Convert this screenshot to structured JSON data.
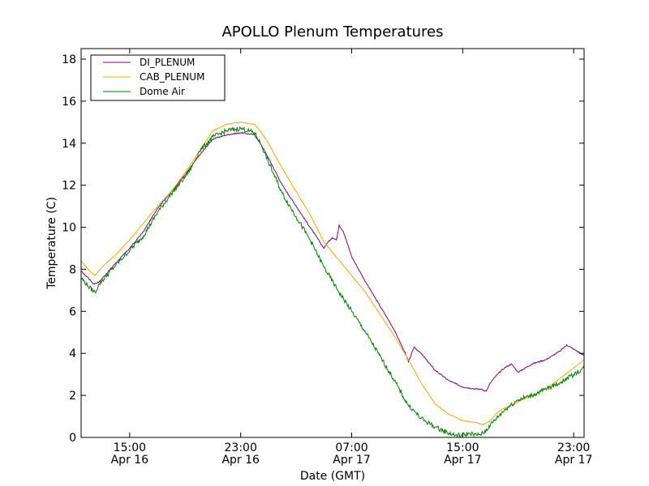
{
  "chart_data": {
    "type": "line",
    "title": "APOLLO Plenum Temperatures",
    "xlabel": "Date (GMT)",
    "ylabel": "Temperature (C)",
    "xlim": [
      11.5,
      47.75
    ],
    "ylim": [
      0,
      18.5
    ],
    "y_ticks": [
      0,
      2,
      4,
      6,
      8,
      10,
      12,
      14,
      16,
      18
    ],
    "x_ticks": [
      {
        "value": 15,
        "time": "15:00",
        "date": "Apr 16"
      },
      {
        "value": 23,
        "time": "23:00",
        "date": "Apr 16"
      },
      {
        "value": 31,
        "time": "07:00",
        "date": "Apr 17"
      },
      {
        "value": 39,
        "time": "15:00",
        "date": "Apr 17"
      },
      {
        "value": 47,
        "time": "23:00",
        "date": "Apr 17"
      }
    ],
    "x_unit_note": "x values are hours since Apr 16 00:00 GMT",
    "legend_position": "top-left",
    "series": [
      {
        "name": "DI_PLENUM",
        "color": "#800080",
        "x": [
          11.5,
          12.0,
          12.4,
          12.8,
          13.2,
          14.0,
          15.0,
          16.0,
          17.0,
          18.0,
          19.0,
          20.0,
          21.0,
          22.0,
          23.0,
          24.0,
          24.5,
          25.0,
          26.0,
          27.0,
          28.0,
          29.0,
          29.3,
          29.6,
          29.9,
          30.1,
          30.4,
          31.0,
          32.0,
          33.0,
          34.0,
          34.8,
          35.1,
          35.5,
          36.0,
          36.5,
          37.0,
          38.0,
          39.0,
          40.0,
          40.3,
          40.7,
          41.0,
          41.5,
          42.0,
          42.5,
          43.0,
          44.0,
          45.0,
          45.5,
          46.0,
          46.5,
          47.0,
          47.75
        ],
        "y": [
          7.9,
          7.6,
          7.3,
          7.4,
          7.7,
          8.3,
          9.0,
          9.8,
          10.9,
          11.7,
          12.5,
          13.4,
          14.2,
          14.4,
          14.5,
          14.4,
          13.9,
          13.3,
          12.0,
          11.0,
          10.0,
          9.0,
          9.3,
          9.5,
          9.4,
          10.1,
          9.8,
          8.6,
          7.4,
          6.3,
          5.2,
          4.1,
          3.6,
          4.3,
          4.0,
          3.6,
          3.2,
          2.7,
          2.4,
          2.3,
          2.3,
          2.2,
          2.6,
          3.0,
          3.3,
          3.5,
          3.1,
          3.5,
          3.7,
          3.9,
          4.1,
          4.4,
          4.2,
          3.9
        ]
      },
      {
        "name": "CAB_PLENUM",
        "color": "#ffa500",
        "x": [
          11.5,
          12.0,
          12.5,
          13.0,
          14.0,
          15.0,
          16.0,
          17.0,
          18.0,
          19.0,
          20.0,
          21.0,
          22.0,
          23.0,
          24.0,
          24.5,
          25.0,
          26.0,
          27.0,
          28.0,
          29.0,
          30.0,
          31.0,
          32.0,
          33.0,
          34.0,
          35.0,
          36.0,
          37.0,
          38.0,
          39.0,
          40.0,
          40.5,
          41.0,
          41.5,
          42.0,
          43.0,
          44.0,
          45.0,
          46.0,
          47.0,
          47.75
        ],
        "y": [
          8.4,
          8.0,
          7.7,
          8.1,
          8.7,
          9.4,
          10.2,
          11.0,
          11.7,
          12.6,
          13.6,
          14.6,
          14.9,
          15.0,
          14.9,
          14.5,
          14.0,
          12.8,
          11.7,
          10.6,
          9.3,
          8.5,
          7.7,
          6.9,
          5.9,
          4.9,
          3.8,
          2.6,
          1.6,
          1.1,
          0.8,
          0.7,
          0.6,
          0.8,
          1.2,
          1.4,
          1.7,
          2.0,
          2.3,
          2.8,
          3.3,
          3.7
        ]
      },
      {
        "name": "Dome Air",
        "color": "#008000",
        "x": [
          11.5,
          12.0,
          12.5,
          12.8,
          13.2,
          14.0,
          15.0,
          16.0,
          17.0,
          18.0,
          19.0,
          19.5,
          20.0,
          21.0,
          22.0,
          23.0,
          24.0,
          24.5,
          25.0,
          26.0,
          27.0,
          28.0,
          29.0,
          30.0,
          31.0,
          32.0,
          33.0,
          34.0,
          35.0,
          36.0,
          37.0,
          38.0,
          38.5,
          39.0,
          39.5,
          40.0,
          40.5,
          41.0,
          42.0,
          43.0,
          44.0,
          45.0,
          46.0,
          47.0,
          47.75
        ],
        "y": [
          7.6,
          7.2,
          6.9,
          7.3,
          7.6,
          8.2,
          8.9,
          9.6,
          10.7,
          11.6,
          12.4,
          12.9,
          13.6,
          14.3,
          14.6,
          14.7,
          14.5,
          13.9,
          13.1,
          11.6,
          10.5,
          9.4,
          8.1,
          7.0,
          6.0,
          5.0,
          3.9,
          2.8,
          1.6,
          0.9,
          0.5,
          0.2,
          0.1,
          0.1,
          0.2,
          0.1,
          0.2,
          0.6,
          1.3,
          1.8,
          2.0,
          2.3,
          2.6,
          3.0,
          3.3
        ]
      }
    ]
  }
}
